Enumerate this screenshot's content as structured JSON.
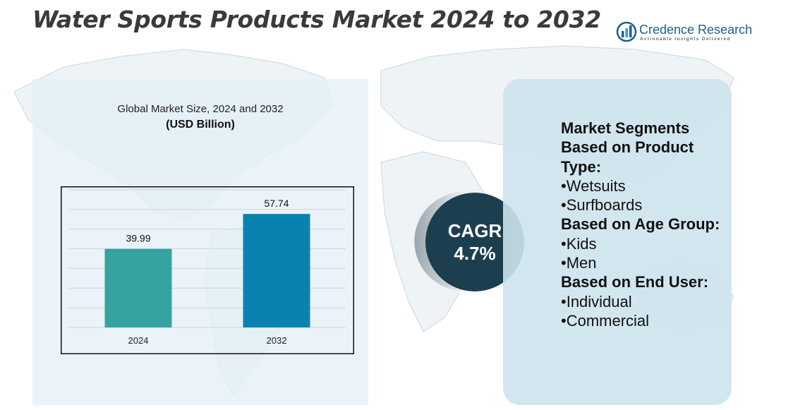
{
  "title": "Water Sports Products Market 2024 to 2032",
  "logo": {
    "name_part1": "Credence",
    "name_part2": " Research",
    "tagline": "Actionable Insights Delivered",
    "icon": "bar-chart-logo-icon"
  },
  "chart_data": {
    "type": "bar",
    "title": "Global Market Size, 2024 and 2032",
    "unit": "(USD Billion)",
    "categories": [
      "2024",
      "2032"
    ],
    "values": [
      39.99,
      57.74
    ],
    "value_labels": [
      "39.99",
      "57.74"
    ],
    "colors": [
      "#35a3a0",
      "#0a82b0"
    ],
    "ylim": [
      0,
      70
    ],
    "grid": true
  },
  "cagr": {
    "label": "CAGR",
    "value": "4.7%"
  },
  "segments": {
    "product_heading": "Market Segments Based on Product Type:",
    "product_items": [
      "•Wetsuits",
      "•Surfboards"
    ],
    "age_heading": "Based on Age Group:",
    "age_items": [
      "•Kids",
      "•Men"
    ],
    "enduser_heading": "Based on End User:",
    "enduser_items": [
      "•Individual",
      "•Commercial"
    ]
  },
  "colors": {
    "title": "#3a3a3a",
    "cagr_circle": "#1c3f4f",
    "segment_panel": "#cde3ee",
    "chart_panel": "#e4f0f7"
  }
}
